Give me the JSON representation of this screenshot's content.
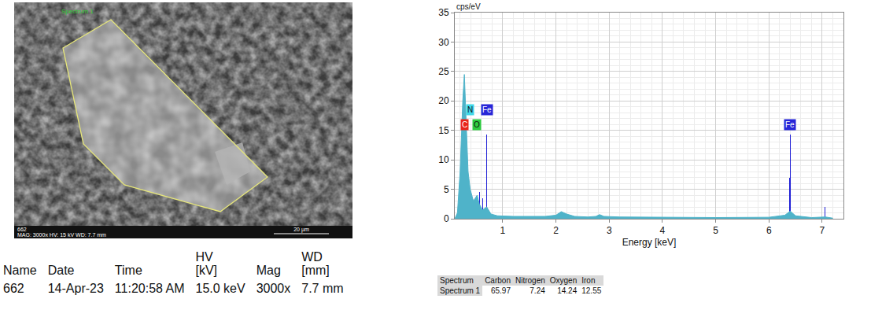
{
  "sem_image": {
    "label": "Spectrum 1",
    "id": "662",
    "info": "MAG: 3000x   HV: 15 kV   WD: 7.7 mm",
    "scale_bar": "20 µm"
  },
  "sem_table": {
    "header": [
      "Name",
      "Date",
      "Time",
      "HV [kV]",
      "Mag",
      "WD [mm]"
    ],
    "rows": [
      [
        "662",
        "14-Apr-23",
        "11:20:58 AM",
        "15.0 keV",
        "3000x",
        "7.7 mm"
      ]
    ]
  },
  "chart_data": {
    "type": "area",
    "x_label": "Energy [keV]",
    "y_label": "cps/eV",
    "xlim": [
      0.1,
      7.4
    ],
    "xticks": [
      1,
      2,
      3,
      4,
      5,
      6,
      7
    ],
    "ylim": [
      0,
      35
    ],
    "yticks": [
      0,
      5,
      10,
      15,
      20,
      25,
      30,
      35
    ],
    "grid": true,
    "series": [
      {
        "type": "area",
        "color": "#4fb3c9",
        "x": [
          0.1,
          0.15,
          0.2,
          0.25,
          0.28,
          0.31,
          0.35,
          0.39,
          0.45,
          0.52,
          0.56,
          0.62,
          0.7,
          0.78,
          0.9,
          1.2,
          1.5,
          1.8,
          2.0,
          2.1,
          2.2,
          2.35,
          2.6,
          2.75,
          2.82,
          2.9,
          3.2,
          4.0,
          5.0,
          6.0,
          6.3,
          6.4,
          6.5,
          6.8,
          7.06,
          7.2
        ],
        "values": [
          0,
          1,
          8,
          20,
          24.5,
          18,
          8,
          5,
          3,
          4,
          2.5,
          1.5,
          2,
          0.8,
          0.5,
          0.4,
          0.4,
          0.4,
          0.6,
          1.2,
          0.8,
          0.4,
          0.3,
          0.4,
          0.7,
          0.4,
          0.3,
          0.25,
          0.2,
          0.25,
          0.6,
          1.3,
          0.5,
          0.2,
          0.3,
          0.1
        ]
      },
      {
        "type": "bar",
        "color": "#1f1fd6",
        "x": [
          0.56,
          0.63,
          0.705,
          6.391,
          6.404,
          7.058
        ],
        "values": [
          4.5,
          3.5,
          14.3,
          7,
          14.3,
          2
        ]
      }
    ],
    "annotations": [
      {
        "text": "C",
        "x": 0.28,
        "y": 16,
        "color": "#e8241c"
      },
      {
        "text": "N",
        "x": 0.39,
        "y": 18.5,
        "color": "#3fd7e8"
      },
      {
        "text": "O",
        "x": 0.52,
        "y": 16,
        "color": "#2ecc40"
      },
      {
        "text": "Fe",
        "x": 0.7,
        "y": 18.5,
        "color": "#2727d8"
      },
      {
        "text": "Fe",
        "x": 6.4,
        "y": 16,
        "color": "#2727d8"
      }
    ]
  },
  "spectrum_table": {
    "header": [
      "Spectrum",
      "Carbon",
      "Nitrogen",
      "Oxygen",
      "Iron"
    ],
    "rows": [
      [
        "Spectrum 1",
        65.97,
        7.24,
        14.24,
        12.55
      ]
    ]
  }
}
